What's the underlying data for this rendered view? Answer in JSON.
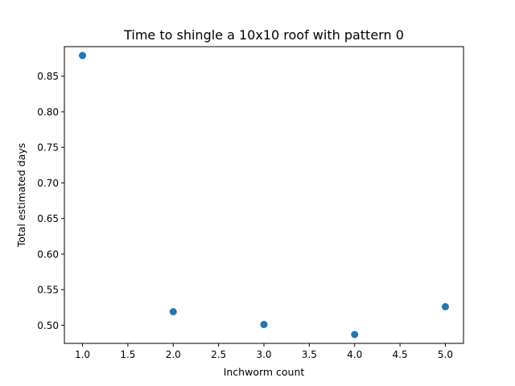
{
  "chart_data": {
    "type": "scatter",
    "title": "Time to shingle a 10x10 roof with pattern 0",
    "xlabel": "Inchworm count",
    "ylabel": "Total estimated days",
    "x": [
      1.0,
      2.0,
      3.0,
      4.0,
      5.0
    ],
    "y": [
      0.879,
      0.519,
      0.501,
      0.487,
      0.526
    ],
    "xlim": [
      0.8,
      5.2
    ],
    "ylim": [
      0.4745,
      0.8915
    ],
    "xticks": [
      1.0,
      1.5,
      2.0,
      2.5,
      3.0,
      3.5,
      4.0,
      4.5,
      5.0
    ],
    "xtick_labels": [
      "1.0",
      "1.5",
      "2.0",
      "2.5",
      "3.0",
      "3.5",
      "4.0",
      "4.5",
      "5.0"
    ],
    "yticks": [
      0.5,
      0.55,
      0.6,
      0.65,
      0.7,
      0.75,
      0.8,
      0.85
    ],
    "ytick_labels": [
      "0.50",
      "0.55",
      "0.60",
      "0.65",
      "0.70",
      "0.75",
      "0.80",
      "0.85"
    ],
    "grid": false,
    "marker_color": "#1f77b4"
  }
}
